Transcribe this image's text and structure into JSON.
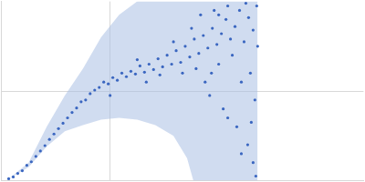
{
  "chart_data": {
    "type": "scatter",
    "color": "#3a66c0",
    "grid": true,
    "tick_labels": false,
    "xlim": [
      0,
      0.4
    ],
    "xticks": [
      0.12
    ],
    "ylim": [
      0,
      2
    ],
    "yticks": [
      1
    ],
    "x": [
      0.008,
      0.013,
      0.018,
      0.023,
      0.028,
      0.033,
      0.038,
      0.043,
      0.048,
      0.053,
      0.058,
      0.063,
      0.068,
      0.073,
      0.078,
      0.083,
      0.088,
      0.093,
      0.098,
      0.103,
      0.108,
      0.113,
      0.118,
      0.123,
      0.128,
      0.133,
      0.138,
      0.143,
      0.148,
      0.153,
      0.158,
      0.163,
      0.168,
      0.173,
      0.178,
      0.183,
      0.188,
      0.193,
      0.198,
      0.203,
      0.208,
      0.213,
      0.218,
      0.223,
      0.228,
      0.233,
      0.238,
      0.243,
      0.248,
      0.253,
      0.258,
      0.263,
      0.268,
      0.273,
      0.278,
      0.282,
      0.12,
      0.15,
      0.16,
      0.175,
      0.19,
      0.2,
      0.21,
      0.215,
      0.22,
      0.225,
      0.23,
      0.235,
      0.24,
      0.245,
      0.25,
      0.255,
      0.26,
      0.265,
      0.27,
      0.272,
      0.275,
      0.278,
      0.28,
      0.283,
      0.265,
      0.25,
      0.24,
      0.232,
      0.276,
      0.281
    ],
    "values": [
      0.02,
      0.04,
      0.08,
      0.11,
      0.17,
      0.21,
      0.27,
      0.33,
      0.39,
      0.46,
      0.52,
      0.58,
      0.64,
      0.7,
      0.76,
      0.81,
      0.88,
      0.9,
      0.97,
      1.01,
      1.04,
      1.1,
      1.08,
      1.15,
      1.12,
      1.2,
      1.16,
      1.22,
      1.19,
      1.28,
      1.21,
      1.3,
      1.24,
      1.36,
      1.27,
      1.4,
      1.3,
      1.45,
      1.32,
      1.5,
      1.38,
      1.58,
      1.42,
      1.62,
      1.48,
      1.7,
      1.52,
      1.64,
      1.8,
      1.58,
      1.72,
      1.9,
      1.55,
      1.82,
      1.68,
      1.95,
      0.95,
      1.35,
      1.1,
      1.18,
      1.55,
      1.2,
      1.7,
      1.25,
      1.85,
      1.1,
      0.95,
      1.9,
      1.3,
      0.8,
      1.95,
      1.4,
      0.6,
      1.1,
      1.98,
      0.4,
      1.2,
      0.2,
      0.9,
      1.5,
      0.3,
      0.7,
      1.85,
      1.2,
      0.65,
      0.05
    ],
    "error_band": {
      "x": [
        0.008,
        0.03,
        0.05,
        0.07,
        0.09,
        0.11,
        0.13,
        0.15,
        0.17,
        0.19,
        0.205,
        0.212,
        0.24,
        0.283
      ],
      "low": [
        0.02,
        0.15,
        0.38,
        0.55,
        0.62,
        0.68,
        0.7,
        0.68,
        0.62,
        0.5,
        0.25,
        0.0,
        -0.2,
        -0.5
      ],
      "high": [
        0.02,
        0.2,
        0.6,
        0.95,
        1.25,
        1.6,
        1.85,
        2.0,
        2.1,
        2.2,
        2.25,
        2.3,
        2.4,
        2.5
      ]
    }
  }
}
